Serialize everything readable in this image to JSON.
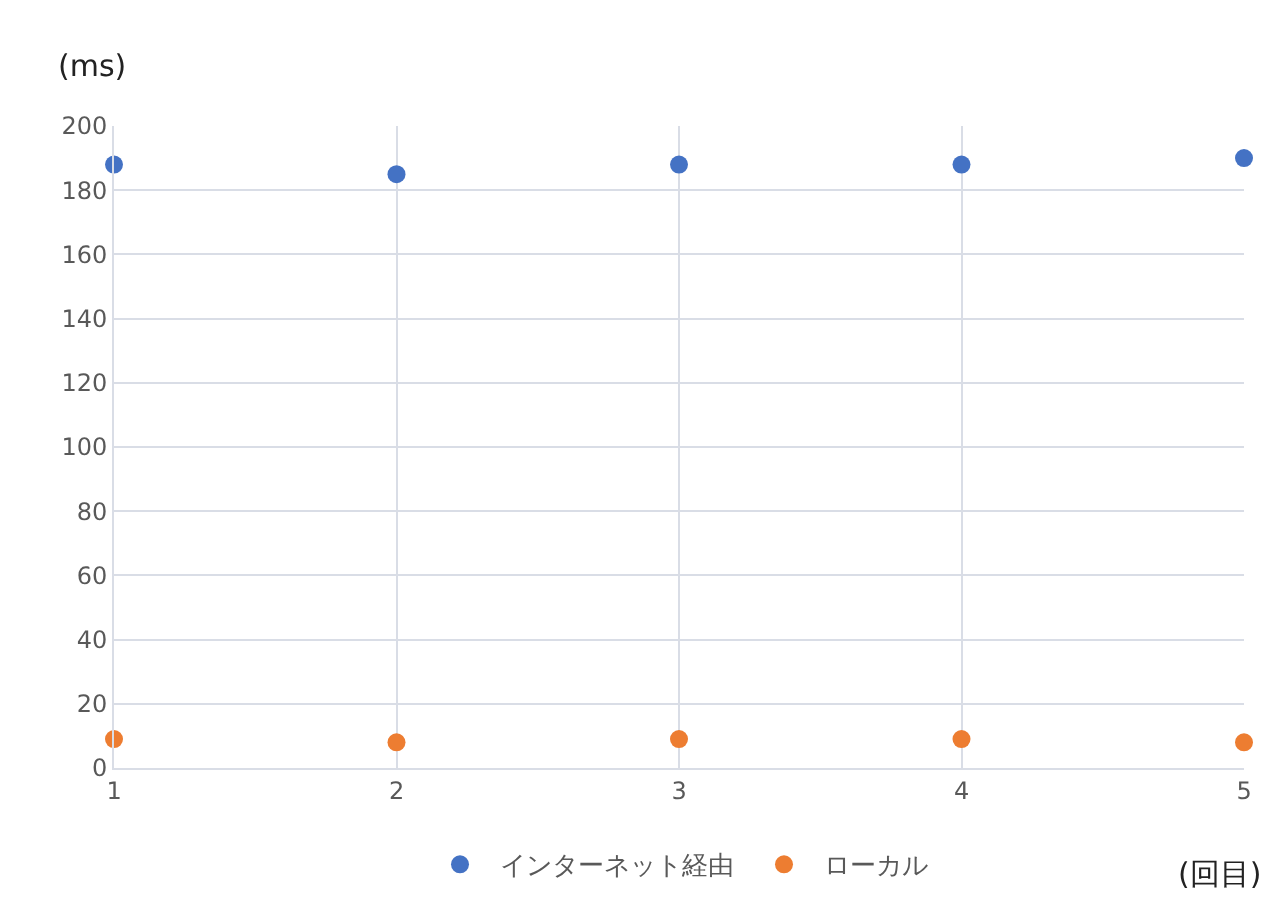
{
  "chart_data": {
    "type": "scatter",
    "ylabel": "(ms)",
    "xlabel": "(回目)",
    "x": [
      1,
      2,
      3,
      4,
      5
    ],
    "xlim": [
      1,
      5
    ],
    "xticks": [
      1,
      2,
      3,
      4,
      5
    ],
    "ylim": [
      0,
      200
    ],
    "yticks": [
      0,
      20,
      40,
      60,
      80,
      100,
      120,
      140,
      160,
      180,
      200
    ],
    "series": [
      {
        "name": "インターネット経由",
        "color": "#4472c4",
        "values": [
          188,
          185,
          188,
          188,
          190
        ]
      },
      {
        "name": "ローカル",
        "color": "#ed7d31",
        "values": [
          9,
          8,
          9,
          9,
          8
        ]
      }
    ],
    "grid": true,
    "legend": "bottom",
    "marker": "circle"
  }
}
